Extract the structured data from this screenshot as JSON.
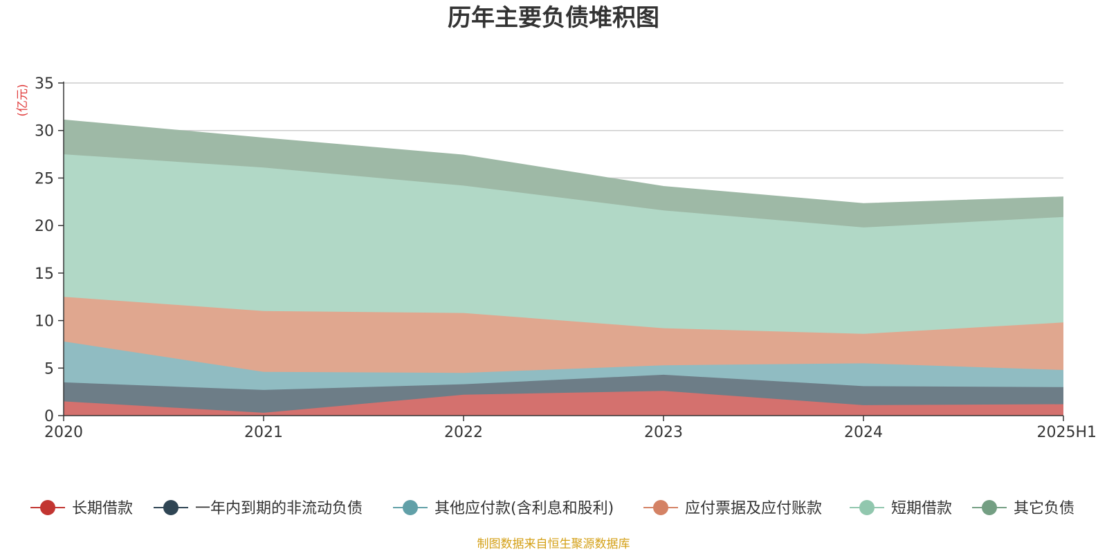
{
  "chart_data": {
    "type": "area",
    "title": "历年主要负债堆积图",
    "unit_label": "(亿元)",
    "source": "制图数据来自恒生聚源数据库",
    "categories": [
      "2020",
      "2021",
      "2022",
      "2023",
      "2024",
      "2025H1"
    ],
    "y_ticks": [
      "0",
      "5",
      "10",
      "15",
      "20",
      "25",
      "30",
      "35"
    ],
    "ylim": [
      0,
      35
    ],
    "stacked": true,
    "grid": true,
    "legend_position": "bottom",
    "series": [
      {
        "name": "长期借款",
        "color": "#c23531",
        "area_color": "#d4716e",
        "values": [
          1.5,
          0.3,
          2.2,
          2.6,
          1.1,
          1.2
        ]
      },
      {
        "name": "一年内到期的非流动负债",
        "color": "#2f4554",
        "area_color": "#6d7d87",
        "values": [
          2.0,
          2.4,
          1.1,
          1.7,
          2.0,
          1.8
        ]
      },
      {
        "name": "其他应付款(含利息和股利)",
        "color": "#61a0a8",
        "area_color": "#90bcc2",
        "values": [
          4.3,
          1.9,
          1.2,
          1.0,
          2.4,
          1.8
        ]
      },
      {
        "name": "应付票据及应付账款",
        "color": "#d48265",
        "area_color": "#e0a78f",
        "values": [
          4.7,
          6.4,
          6.3,
          3.9,
          3.1,
          5.0
        ]
      },
      {
        "name": "短期借款",
        "color": "#91c7ae",
        "area_color": "#b1d8c6",
        "values": [
          15.0,
          15.1,
          13.4,
          12.4,
          11.2,
          11.1
        ]
      },
      {
        "name": "其它负债",
        "color": "#749f83",
        "area_color": "#9eb9a6",
        "values": [
          3.6,
          3.1,
          3.2,
          2.5,
          2.5,
          2.1
        ]
      }
    ]
  }
}
